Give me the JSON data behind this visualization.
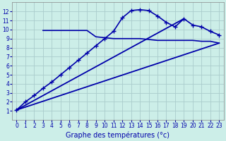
{
  "background_color": "#cceee8",
  "grid_color": "#aacccc",
  "line_color": "#0000aa",
  "xlabel": "Graphe des températures (°c)",
  "xlim": [
    -0.5,
    23.5
  ],
  "ylim": [
    0,
    13
  ],
  "yticks": [
    1,
    2,
    3,
    4,
    5,
    6,
    7,
    8,
    9,
    10,
    11,
    12
  ],
  "xticks": [
    0,
    1,
    2,
    3,
    4,
    5,
    6,
    7,
    8,
    9,
    10,
    11,
    12,
    13,
    14,
    15,
    16,
    17,
    18,
    19,
    20,
    21,
    22,
    23
  ],
  "series": [
    {
      "x": [
        0,
        1,
        2,
        3,
        4,
        5,
        6,
        7,
        8,
        9,
        10,
        11,
        12,
        13,
        14,
        15,
        16,
        17,
        18,
        19,
        20,
        21,
        22,
        23
      ],
      "y": [
        1.1,
        2.0,
        2.7,
        3.5,
        4.2,
        5.0,
        5.8,
        6.6,
        7.4,
        8.2,
        9.0,
        9.8,
        11.3,
        12.1,
        12.2,
        12.1,
        11.5,
        10.8,
        10.3,
        11.2,
        10.5,
        10.3,
        9.8,
        9.4
      ],
      "marker": "+",
      "markersize": 4,
      "linewidth": 1.2,
      "has_marker": true
    },
    {
      "x": [
        3,
        4,
        5,
        6,
        7,
        8,
        9,
        10,
        11,
        12,
        13,
        14,
        15,
        16,
        17,
        18,
        19,
        20,
        21,
        22,
        23
      ],
      "y": [
        9.9,
        9.9,
        9.9,
        9.9,
        9.9,
        9.9,
        9.2,
        9.1,
        9.0,
        9.0,
        9.0,
        9.0,
        8.9,
        8.8,
        8.8,
        8.8,
        8.8,
        8.8,
        8.7,
        8.7,
        8.5
      ],
      "marker": null,
      "markersize": 0,
      "linewidth": 1.2,
      "has_marker": false
    },
    {
      "x": [
        0,
        19
      ],
      "y": [
        1.1,
        11.2
      ],
      "marker": null,
      "markersize": 0,
      "linewidth": 1.3,
      "has_marker": false
    },
    {
      "x": [
        0,
        23
      ],
      "y": [
        1.1,
        8.5
      ],
      "marker": null,
      "markersize": 0,
      "linewidth": 1.3,
      "has_marker": false
    }
  ]
}
